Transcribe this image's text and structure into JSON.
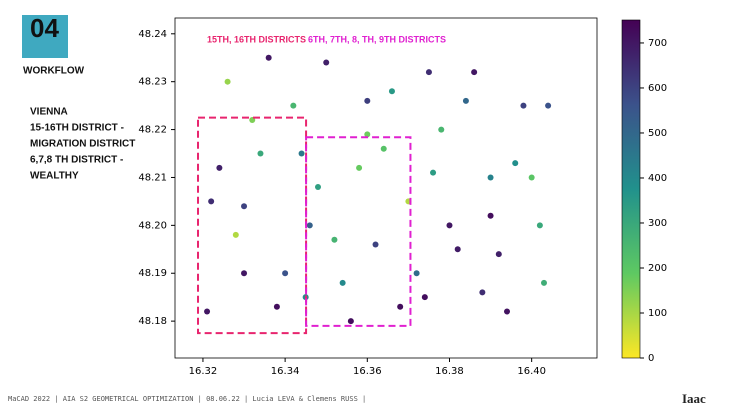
{
  "slide": {
    "number": "04",
    "section": "WORKFLOW",
    "notes": [
      "VIENNA",
      "15-16TH DISTRICT -",
      "MIGRATION DISTRICT",
      "6,7,8 TH DISTRICT -",
      "WEALTHY"
    ],
    "footer": "MaCAD 2022 | AIA S2 GEOMETRICAL OPTIMIZATION | 08.06.22 | Lucia LEVA & Clemens RUSS |",
    "logo": "Iaac"
  },
  "chart_data": {
    "type": "scatter",
    "x": [
      16.322,
      16.326,
      16.33,
      16.334,
      16.338,
      16.342,
      16.346,
      16.35,
      16.354,
      16.358,
      16.362,
      16.366,
      16.37,
      16.374,
      16.378,
      16.382,
      16.386,
      16.39,
      16.394,
      16.398,
      16.402,
      16.324,
      16.332,
      16.34,
      16.348,
      16.356,
      16.364,
      16.372,
      16.38,
      16.388,
      16.396,
      16.404,
      16.328,
      16.336,
      16.344,
      16.352,
      16.36,
      16.368,
      16.376,
      16.384,
      16.392,
      16.4,
      16.321,
      16.33,
      16.345,
      16.36,
      16.375,
      16.39,
      16.403
    ],
    "y": [
      48.205,
      48.23,
      48.19,
      48.215,
      48.183,
      48.225,
      48.2,
      48.234,
      48.188,
      48.212,
      48.196,
      48.228,
      48.205,
      48.185,
      48.22,
      48.195,
      48.232,
      48.21,
      48.182,
      48.225,
      48.2,
      48.212,
      48.222,
      48.19,
      48.208,
      48.18,
      48.216,
      48.19,
      48.2,
      48.186,
      48.213,
      48.225,
      48.198,
      48.235,
      48.215,
      48.197,
      48.226,
      48.183,
      48.211,
      48.226,
      48.194,
      48.21,
      48.182,
      48.204,
      48.185,
      48.219,
      48.232,
      48.202,
      48.188
    ],
    "values": [
      650,
      120,
      700,
      300,
      720,
      250,
      520,
      680,
      400,
      180,
      600,
      350,
      90,
      720,
      250,
      690,
      700,
      420,
      710,
      600,
      300,
      680,
      150,
      560,
      330,
      720,
      210,
      480,
      700,
      650,
      380,
      560,
      90,
      700,
      450,
      260,
      610,
      720,
      340,
      500,
      680,
      200,
      700,
      600,
      390,
      170,
      650,
      720,
      280
    ],
    "color_scale": "viridis",
    "clim": [
      0,
      751
    ],
    "cticks": [
      0,
      100,
      200,
      300,
      400,
      500,
      600,
      700
    ],
    "xlim": [
      16.3132,
      16.4159
    ],
    "ylim": [
      48.1723,
      48.2433
    ],
    "xticks": [
      16.32,
      16.34,
      16.36,
      16.38,
      {
        "value": 16.4,
        "label": "16.40"
      }
    ],
    "yticks": [
      48.18,
      48.19,
      {
        "value": 48.2,
        "label": "48.20"
      },
      48.21,
      48.22,
      48.23,
      48.24
    ],
    "regions": [
      {
        "label": "15TH, 16TH DISTRICTS",
        "color": "#e8246e",
        "xlim": [
          16.3188,
          16.3451
        ],
        "ylim": [
          48.1775,
          48.2225
        ]
      },
      {
        "label": "6TH, 7TH, 8, TH, 9TH DISTRICTS",
        "color": "#e020d0",
        "xlim": [
          16.3451,
          16.3705
        ],
        "ylim": [
          48.179,
          48.2184
        ]
      }
    ]
  }
}
